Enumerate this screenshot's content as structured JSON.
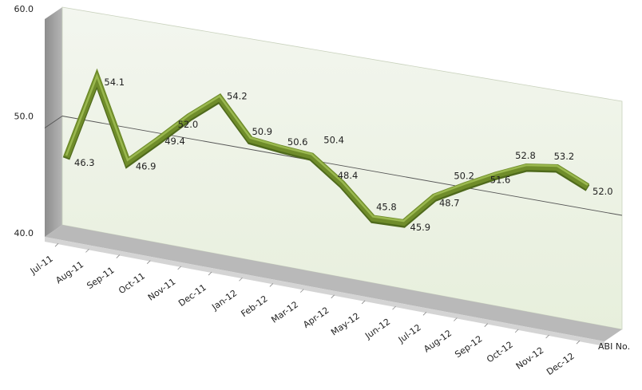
{
  "chart_data": {
    "type": "line",
    "title": "",
    "xlabel": "",
    "ylabel": "",
    "ylim": [
      40,
      60
    ],
    "yticks": [
      "40.0",
      "50.0",
      "60.0"
    ],
    "categories": [
      "Jul-11",
      "Aug-11",
      "Sep-11",
      "Oct-11",
      "Nov-11",
      "Dec-11",
      "Jan-12",
      "Feb-12",
      "Mar-12",
      "Apr-12",
      "May-12",
      "Jun-12",
      "Jul-12",
      "Aug-12",
      "Sep-12",
      "Oct-12",
      "Nov-12",
      "Dec-12"
    ],
    "series": [
      {
        "name": "ABI No.",
        "values": [
          46.3,
          54.1,
          46.9,
          49.4,
          52.0,
          54.2,
          50.9,
          50.6,
          50.4,
          48.4,
          45.8,
          45.9,
          48.7,
          50.2,
          51.6,
          52.8,
          53.2,
          52.0
        ],
        "labels": [
          "46.3",
          "54.1",
          "46.9",
          "49.4",
          "52.0",
          "54.2",
          "50.9",
          "50.6",
          "50.4",
          "48.4",
          "45.8",
          "45.9",
          "48.7",
          "50.2",
          "51.6",
          "52.8",
          "53.2",
          "52.0"
        ]
      }
    ],
    "grid": true,
    "style": "3d-perspective",
    "colors": {
      "line": "#6f8c2a",
      "line_highlight": "#9ab84f",
      "wall": "#f0f4ea",
      "wall_side": "#9c9c9c",
      "floor": "#bdbdbd",
      "gridline": "#555555"
    }
  }
}
